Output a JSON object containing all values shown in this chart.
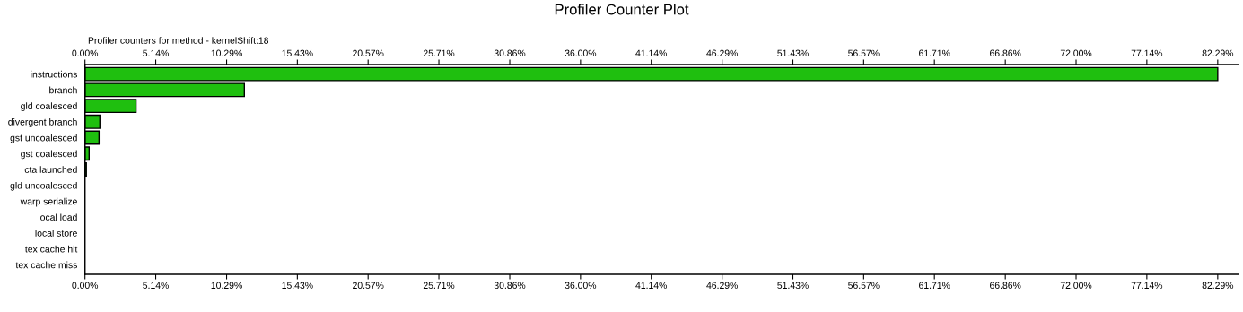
{
  "chart_data": {
    "type": "bar",
    "orientation": "horizontal",
    "title": "Profiler Counter Plot",
    "subtitle": "Profiler counters for method - kernelShift:18",
    "categories": [
      "instructions",
      "branch",
      "gld coalesced",
      "divergent branch",
      "gst uncoalesced",
      "gst coalesced",
      "cta launched",
      "gld uncoalesced",
      "warp serialize",
      "local load",
      "local store",
      "tex cache hit",
      "tex cache miss"
    ],
    "values": [
      82.29,
      11.58,
      3.71,
      1.08,
      1.02,
      0.3,
      0.1,
      0,
      0,
      0,
      0,
      0,
      0
    ],
    "color": "#1fbf0f",
    "grid": false,
    "legend": false,
    "xlim": [
      0,
      83.8
    ],
    "xticks": [
      {
        "value": 0,
        "label": "0.00%"
      },
      {
        "value": 5.14,
        "label": "5.14%"
      },
      {
        "value": 10.29,
        "label": "10.29%"
      },
      {
        "value": 15.43,
        "label": "15.43%"
      },
      {
        "value": 20.57,
        "label": "20.57%"
      },
      {
        "value": 25.71,
        "label": "25.71%"
      },
      {
        "value": 30.86,
        "label": "30.86%"
      },
      {
        "value": 36.0,
        "label": "36.00%"
      },
      {
        "value": 41.14,
        "label": "41.14%"
      },
      {
        "value": 46.29,
        "label": "46.29%"
      },
      {
        "value": 51.43,
        "label": "51.43%"
      },
      {
        "value": 56.57,
        "label": "56.57%"
      },
      {
        "value": 61.71,
        "label": "61.71%"
      },
      {
        "value": 66.86,
        "label": "66.86%"
      },
      {
        "value": 72.0,
        "label": "72.00%"
      },
      {
        "value": 77.14,
        "label": "77.14%"
      },
      {
        "value": 82.29,
        "label": "82.29%"
      }
    ],
    "x2lim": [
      0,
      83.8
    ],
    "x2ticks": [
      {
        "value": 0,
        "label": "0.00%"
      },
      {
        "value": 5.14,
        "label": "5.14%"
      },
      {
        "value": 10.29,
        "label": "10.29%"
      },
      {
        "value": 15.43,
        "label": "15.43%"
      },
      {
        "value": 20.57,
        "label": "20.57%"
      },
      {
        "value": 25.71,
        "label": "25.71%"
      },
      {
        "value": 30.86,
        "label": "30.86%"
      },
      {
        "value": 36.0,
        "label": "36.00%"
      },
      {
        "value": 41.14,
        "label": "41.14%"
      },
      {
        "value": 46.29,
        "label": "46.29%"
      },
      {
        "value": 51.43,
        "label": "51.43%"
      },
      {
        "value": 56.57,
        "label": "56.57%"
      },
      {
        "value": 61.71,
        "label": "61.71%"
      },
      {
        "value": 66.86,
        "label": "66.86%"
      },
      {
        "value": 72.0,
        "label": "72.00%"
      },
      {
        "value": 77.14,
        "label": "77.14%"
      },
      {
        "value": 82.29,
        "label": "82.29%"
      }
    ]
  }
}
